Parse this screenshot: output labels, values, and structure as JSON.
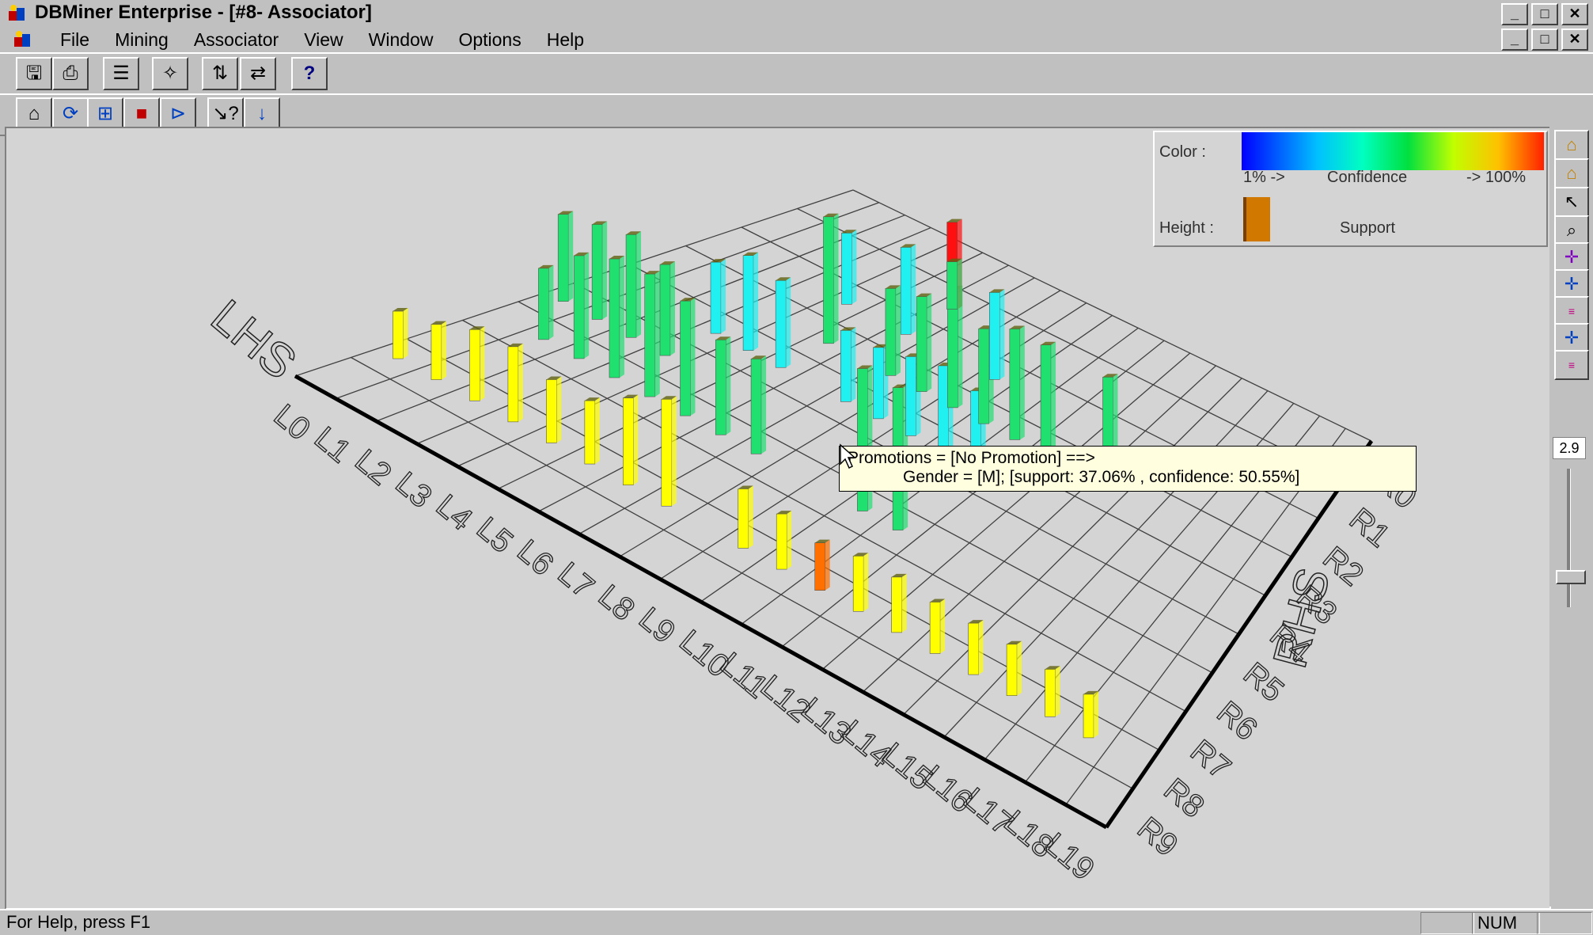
{
  "window": {
    "title": "DBMiner Enterprise - [#8- Associator]"
  },
  "menu": {
    "items": [
      "File",
      "Mining",
      "Associator",
      "View",
      "Window",
      "Options",
      "Help"
    ]
  },
  "legend": {
    "color_label": "Color :",
    "min_label": "1% ->",
    "confidence_label": "Confidence",
    "max_label": "-> 100%",
    "height_label": "Height :",
    "support_label": "Support"
  },
  "axes": {
    "lhs_label": "LHS",
    "rhs_label": "RHS",
    "lhs_ticks": [
      "L0",
      "L1",
      "L2",
      "L3",
      "L4",
      "L5",
      "L6",
      "L7",
      "L8",
      "L9",
      "L10",
      "L11",
      "L12",
      "L13",
      "L14",
      "L15",
      "L16",
      "L17",
      "L18",
      "L19"
    ],
    "rhs_ticks": [
      "R0",
      "R1",
      "R2",
      "R3",
      "R4",
      "R5",
      "R6",
      "R7",
      "R8",
      "R9"
    ]
  },
  "tooltip": {
    "line1": "Promotions = [No Promotion] ==>",
    "line2": "Gender = [M]; [support: 37.06% , confidence: 50.55%]"
  },
  "slider": {
    "value": "2.9"
  },
  "status": {
    "help_text": "For Help, press F1",
    "num": "NUM"
  },
  "colors": {
    "yellow": "#ffff00",
    "green": "#20e070",
    "cyan": "#20f0f0",
    "red": "#ff1010",
    "orange": "#ff7000"
  }
}
